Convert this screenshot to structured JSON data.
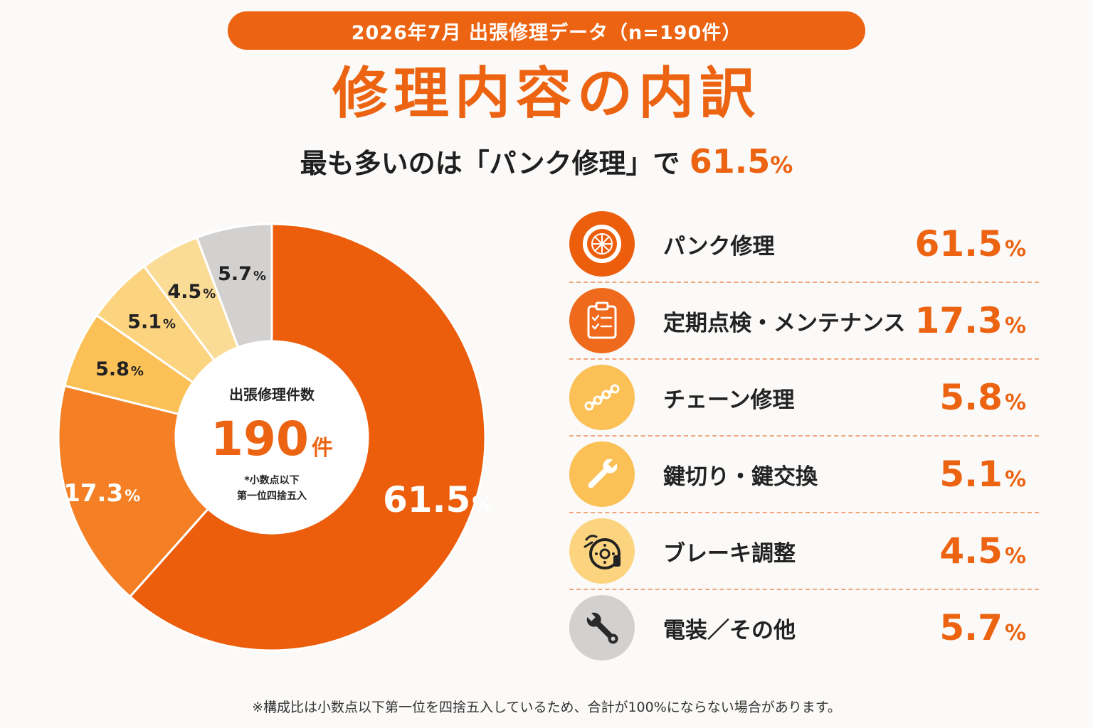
{
  "header": {
    "pill": "2026年7月 出張修理データ（n=190件）",
    "title": "修理内容の内訳",
    "subtitle_prefix": "最も多いのは「パンク修理」で",
    "subtitle_highlight": "61.5",
    "subtitle_unit": "%"
  },
  "center": {
    "label": "出張修理件数",
    "count": "190",
    "count_unit": "件",
    "note_line1": "*小数点以下",
    "note_line2": "第一位四捨五入"
  },
  "colors": {
    "accent": "#ec6311",
    "text": "#222222"
  },
  "chart_data": {
    "type": "pie",
    "style": "donut",
    "total": 190,
    "unit": "%",
    "categories": [
      "パンク修理",
      "定期点検・メンテナンス",
      "チェーン修理",
      "鍵切り・鍵交換",
      "ブレーキ調整",
      "電装／その他"
    ],
    "values": [
      61.5,
      17.3,
      5.8,
      5.1,
      4.5,
      5.7
    ],
    "colors": [
      "#ec5e0c",
      "#f47f25",
      "#fbc056",
      "#fcd47f",
      "#fbdc97",
      "#d3d1d0"
    ],
    "label_colors": [
      "#ffffff",
      "#ffffff",
      "#222222",
      "#222222",
      "#222222",
      "#222222"
    ]
  },
  "legend": [
    {
      "label": "パンク修理",
      "value": "61.5",
      "unit": "%",
      "icon": "tire-icon",
      "icon_bg": "#ec5e0c"
    },
    {
      "label": "定期点検・メンテナンス",
      "value": "17.3",
      "unit": "%",
      "icon": "clipboard-checklist-icon",
      "icon_bg": "#ef6a1c"
    },
    {
      "label": "チェーン修理",
      "value": "5.8",
      "unit": "%",
      "icon": "chain-icon",
      "icon_bg": "#fbc056"
    },
    {
      "label": "鍵切り・鍵交換",
      "value": "5.1",
      "unit": "%",
      "icon": "wrench-icon",
      "icon_bg": "#fbc056"
    },
    {
      "label": "ブレーキ調整",
      "value": "4.5",
      "unit": "%",
      "icon": "brake-disc-icon",
      "icon_bg": "#fcd47f"
    },
    {
      "label": "電装／その他",
      "value": "5.7",
      "unit": "%",
      "icon": "spanner-icon",
      "icon_bg": "#d3d1d0"
    }
  ],
  "footnote": "※構成比は小数点以下第一位を四捨五入しているため、合計が100%にならない場合があります。"
}
